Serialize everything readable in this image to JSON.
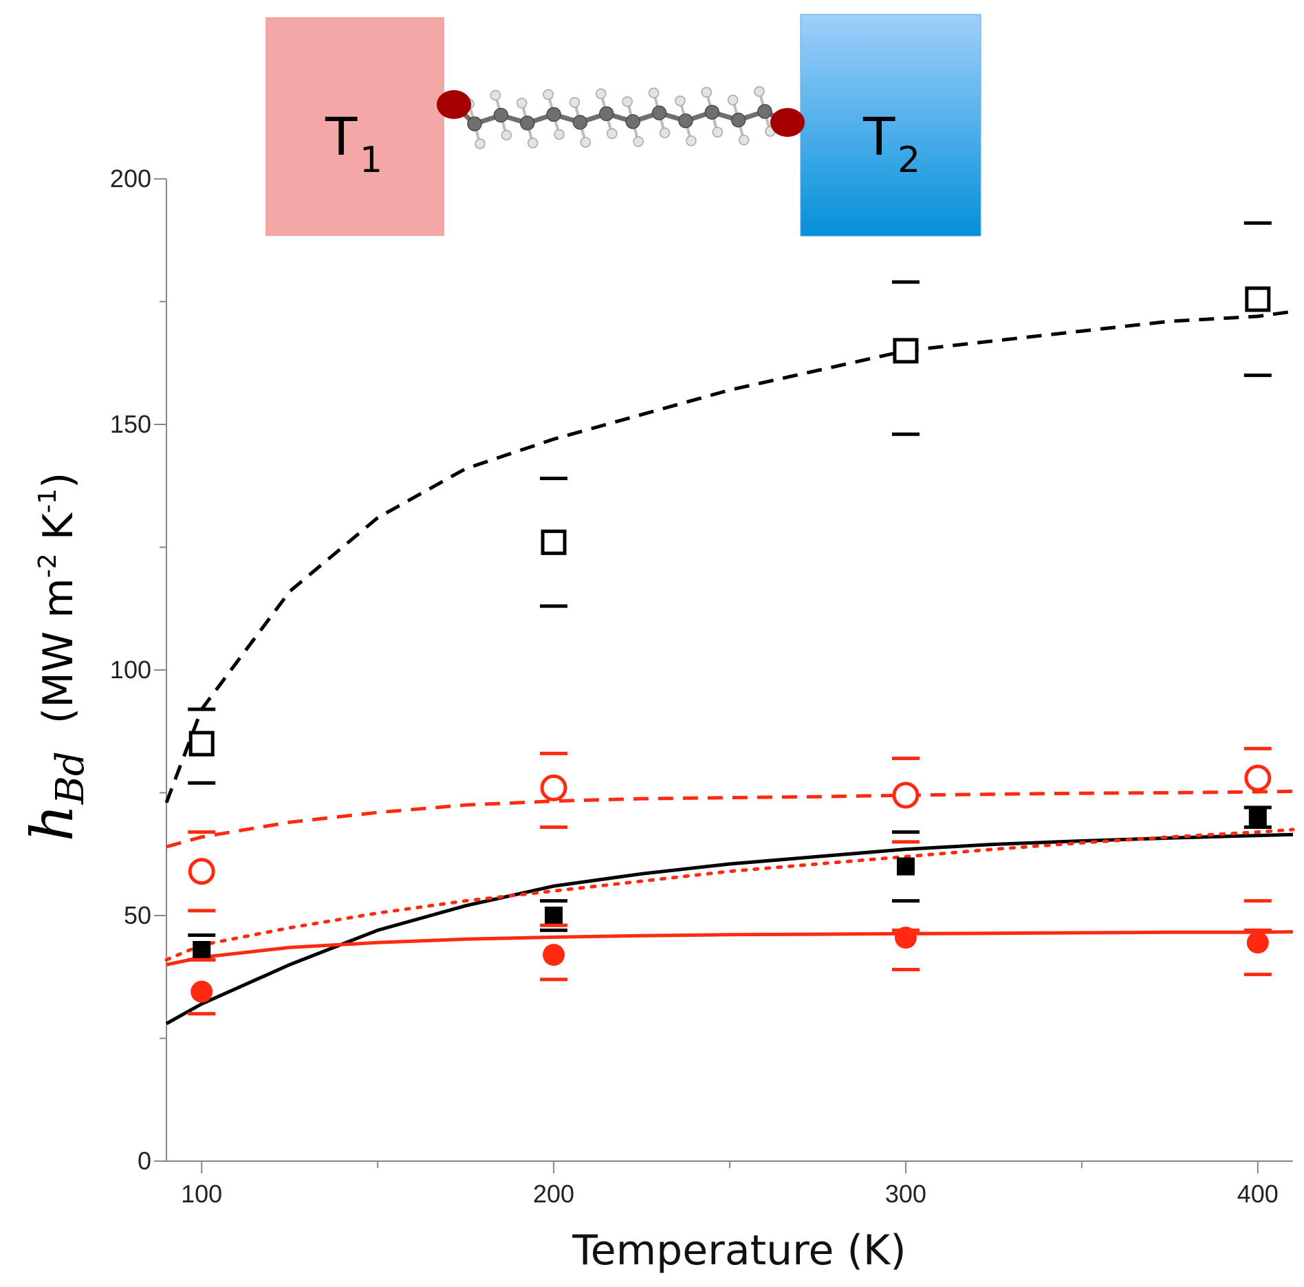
{
  "chart_data": {
    "type": "scatter",
    "title": "",
    "xlabel": "Temperature (K)",
    "ylabel_symbol": "h",
    "ylabel_subscript": "Bd",
    "ylabel_units": "(MW m",
    "ylabel_units_exp1": "-2",
    "ylabel_units_mid": " K",
    "ylabel_units_exp2": "-1",
    "ylabel_units_end": ")",
    "xlim": [
      90,
      410
    ],
    "ylim": [
      0,
      200
    ],
    "xticks": [
      100,
      200,
      300,
      400
    ],
    "yticks": [
      0,
      50,
      100,
      150,
      200
    ],
    "grid": false,
    "colors": {
      "black": "#000000",
      "red": "#ff2a10"
    },
    "series": [
      {
        "name": "open-black-squares",
        "marker": "open-square",
        "color": "#000000",
        "x": [
          100,
          200,
          300,
          400
        ],
        "y": [
          85,
          126,
          165,
          175.5
        ],
        "err_low": [
          77,
          113,
          148,
          160
        ],
        "err_high": [
          92,
          139,
          179,
          191
        ]
      },
      {
        "name": "filled-black-squares",
        "marker": "filled-square",
        "color": "#000000",
        "x": [
          100,
          200,
          300,
          400
        ],
        "y": [
          43,
          50,
          60,
          70
        ],
        "err_low": [
          41,
          47,
          53,
          68
        ],
        "err_high": [
          46,
          53,
          67,
          72
        ]
      },
      {
        "name": "open-red-circles",
        "marker": "open-circle",
        "color": "#ff2a10",
        "x": [
          100,
          200,
          300,
          400
        ],
        "y": [
          59,
          76,
          74.5,
          78
        ],
        "err_low": [
          51,
          68,
          65,
          53
        ],
        "err_high": [
          67,
          83,
          82,
          84
        ]
      },
      {
        "name": "filled-red-circles",
        "marker": "filled-circle",
        "color": "#ff2a10",
        "x": [
          100,
          200,
          300,
          400
        ],
        "y": [
          34.5,
          42,
          45.5,
          44.5
        ],
        "err_low": [
          30,
          37,
          39,
          38
        ],
        "err_high": [
          41,
          48,
          47,
          47
        ]
      }
    ],
    "curves": [
      {
        "name": "black-dashed-fit",
        "color": "#000000",
        "style": "dashed",
        "x": [
          90,
          100,
          125,
          150,
          175,
          200,
          225,
          250,
          275,
          300,
          325,
          350,
          375,
          400,
          410
        ],
        "y": [
          73,
          92,
          116,
          131,
          141,
          147,
          152,
          157,
          161,
          165,
          167,
          169,
          171,
          172,
          173
        ]
      },
      {
        "name": "black-solid-fit",
        "color": "#000000",
        "style": "solid",
        "x": [
          90,
          100,
          125,
          150,
          175,
          200,
          225,
          250,
          275,
          300,
          325,
          350,
          375,
          400,
          410
        ],
        "y": [
          28,
          32,
          40,
          47,
          52,
          56,
          58.5,
          60.5,
          62,
          63.5,
          64.5,
          65.2,
          65.8,
          66.3,
          66.5
        ]
      },
      {
        "name": "red-dashed-fit",
        "color": "#ff2a10",
        "style": "dashed",
        "x": [
          90,
          100,
          125,
          150,
          175,
          200,
          225,
          250,
          275,
          300,
          325,
          350,
          375,
          400,
          410
        ],
        "y": [
          64,
          66,
          69,
          71,
          72.5,
          73.3,
          73.8,
          74,
          74.2,
          74.5,
          74.7,
          74.9,
          75,
          75.2,
          75.3
        ]
      },
      {
        "name": "red-dotted-fit",
        "color": "#ff2a10",
        "style": "dotted",
        "x": [
          90,
          100,
          125,
          150,
          175,
          200,
          225,
          250,
          275,
          300,
          325,
          350,
          375,
          400,
          410
        ],
        "y": [
          41,
          44,
          47.5,
          50.5,
          53,
          55,
          57,
          59,
          60.5,
          62,
          63.5,
          64.8,
          66,
          67,
          67.5
        ]
      },
      {
        "name": "red-solid-fit",
        "color": "#ff2a10",
        "style": "solid",
        "x": [
          90,
          100,
          125,
          150,
          175,
          200,
          225,
          250,
          275,
          300,
          325,
          350,
          375,
          400,
          410
        ],
        "y": [
          40,
          41.5,
          43.5,
          44.5,
          45.2,
          45.6,
          45.9,
          46.1,
          46.2,
          46.3,
          46.4,
          46.5,
          46.6,
          46.6,
          46.7
        ]
      }
    ]
  },
  "inset": {
    "left_box_label": "T",
    "left_box_sub": "1",
    "right_box_label": "T",
    "right_box_sub": "2",
    "colors": {
      "left_box": "#f3a8a6",
      "right_box_top": "#9fd0fb",
      "right_box_bottom": "#0390d9",
      "anchor": "#a40000",
      "chain": "#6f6f6f",
      "hydrogen": "#e3e3e3"
    }
  }
}
